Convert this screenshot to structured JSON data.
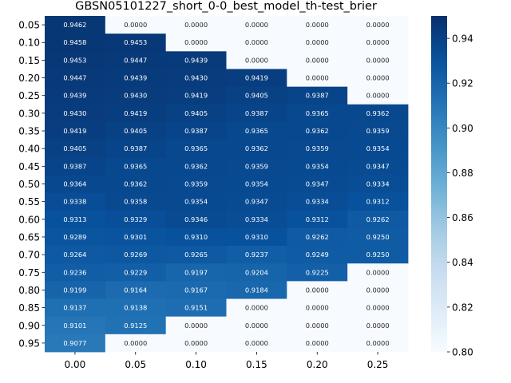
{
  "chart_data": {
    "type": "heatmap",
    "title": "GBSN05101227_short_0-0_best_model_th-test_brier",
    "xlabel": "",
    "ylabel": "",
    "x_categories": [
      "0.00",
      "0.05",
      "0.10",
      "0.15",
      "0.20",
      "0.25"
    ],
    "y_categories": [
      "0.05",
      "0.10",
      "0.15",
      "0.20",
      "0.25",
      "0.30",
      "0.35",
      "0.40",
      "0.45",
      "0.50",
      "0.55",
      "0.60",
      "0.65",
      "0.70",
      "0.75",
      "0.80",
      "0.85",
      "0.90",
      "0.95"
    ],
    "values": [
      [
        0.9462,
        0.0,
        0.0,
        0.0,
        0.0,
        0.0
      ],
      [
        0.9458,
        0.9453,
        0.0,
        0.0,
        0.0,
        0.0
      ],
      [
        0.9453,
        0.9447,
        0.9439,
        0.0,
        0.0,
        0.0
      ],
      [
        0.9447,
        0.9439,
        0.943,
        0.9419,
        0.0,
        0.0
      ],
      [
        0.9439,
        0.943,
        0.9419,
        0.9405,
        0.9387,
        0.0
      ],
      [
        0.943,
        0.9419,
        0.9405,
        0.9387,
        0.9365,
        0.9362
      ],
      [
        0.9419,
        0.9405,
        0.9387,
        0.9365,
        0.9362,
        0.9359
      ],
      [
        0.9405,
        0.9387,
        0.9365,
        0.9362,
        0.9359,
        0.9354
      ],
      [
        0.9387,
        0.9365,
        0.9362,
        0.9359,
        0.9354,
        0.9347
      ],
      [
        0.9364,
        0.9362,
        0.9359,
        0.9354,
        0.9347,
        0.9334
      ],
      [
        0.9338,
        0.9358,
        0.9354,
        0.9347,
        0.9334,
        0.9312
      ],
      [
        0.9313,
        0.9329,
        0.9346,
        0.9334,
        0.9312,
        0.9262
      ],
      [
        0.9289,
        0.9301,
        0.931,
        0.931,
        0.9262,
        0.925
      ],
      [
        0.9264,
        0.9269,
        0.9265,
        0.9237,
        0.9249,
        0.925
      ],
      [
        0.9236,
        0.9229,
        0.9197,
        0.9204,
        0.9225,
        0.0
      ],
      [
        0.9199,
        0.9164,
        0.9167,
        0.9184,
        0.0,
        0.0
      ],
      [
        0.9137,
        0.9138,
        0.9151,
        0.0,
        0.0,
        0.0
      ],
      [
        0.9101,
        0.9125,
        0.0,
        0.0,
        0.0,
        0.0
      ],
      [
        0.9077,
        0.0,
        0.0,
        0.0,
        0.0,
        0.0
      ]
    ],
    "value_format": "4 decimals",
    "colormap": "Blues",
    "color_range": [
      0.8,
      0.95
    ],
    "colorbar_ticks": [
      "0.80",
      "0.82",
      "0.84",
      "0.86",
      "0.88",
      "0.90",
      "0.92",
      "0.94"
    ],
    "grid": false,
    "legend": "colorbar-right"
  }
}
